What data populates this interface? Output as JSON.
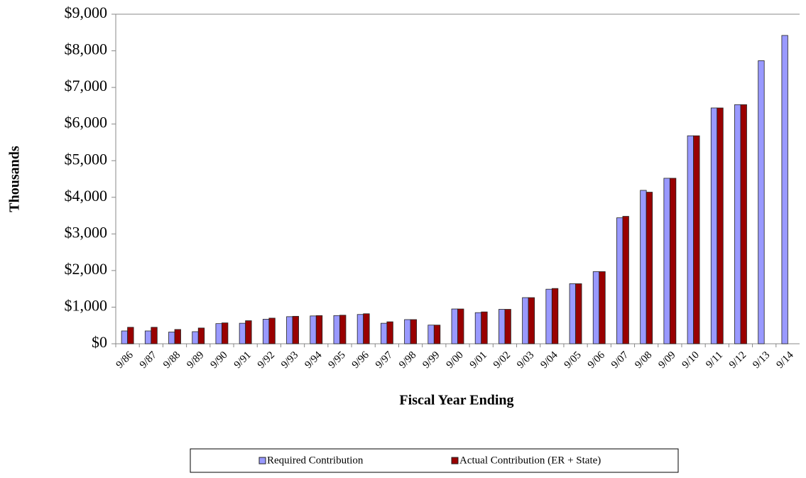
{
  "chart_data": {
    "type": "bar",
    "y_label": "Thousands",
    "x_label": "Fiscal Year Ending",
    "categories": [
      "9/86",
      "9/87",
      "9/88",
      "9/89",
      "9/90",
      "9/91",
      "9/92",
      "9/93",
      "9/94",
      "9/95",
      "9/96",
      "9/97",
      "9/98",
      "9/99",
      "9/00",
      "9/01",
      "9/02",
      "9/03",
      "9/04",
      "9/05",
      "9/06",
      "9/07",
      "9/08",
      "9/09",
      "9/10",
      "9/11",
      "9/12",
      "9/13",
      "9/14"
    ],
    "series": [
      {
        "name": "Required Contribution",
        "color": "#9999ff",
        "values": [
          350,
          350,
          320,
          330,
          550,
          560,
          670,
          740,
          760,
          770,
          800,
          560,
          660,
          510,
          950,
          850,
          940,
          1260,
          1490,
          1640,
          1970,
          3440,
          4190,
          4520,
          5680,
          6440,
          6530,
          7730,
          8420
        ]
      },
      {
        "name": "Actual Contribution (ER + State)",
        "color": "#990000",
        "values": [
          450,
          450,
          390,
          430,
          570,
          630,
          700,
          750,
          770,
          780,
          820,
          600,
          660,
          510,
          950,
          870,
          940,
          1260,
          1510,
          1640,
          1970,
          3480,
          4140,
          4520,
          5680,
          6440,
          6530,
          null,
          null
        ]
      }
    ],
    "ylim": [
      0,
      9000
    ],
    "yticks": [
      {
        "value": 0,
        "label": "$0"
      },
      {
        "value": 1000,
        "label": "$1,000"
      },
      {
        "value": 2000,
        "label": "$2,000"
      },
      {
        "value": 3000,
        "label": "$3,000"
      },
      {
        "value": 4000,
        "label": "$4,000"
      },
      {
        "value": 5000,
        "label": "$5,000"
      },
      {
        "value": 6000,
        "label": "$6,000"
      },
      {
        "value": 7000,
        "label": "$7,000"
      },
      {
        "value": 8000,
        "label": "$8,000"
      },
      {
        "value": 9000,
        "label": "$9,000"
      }
    ],
    "grid": false,
    "legend": "bottom"
  }
}
